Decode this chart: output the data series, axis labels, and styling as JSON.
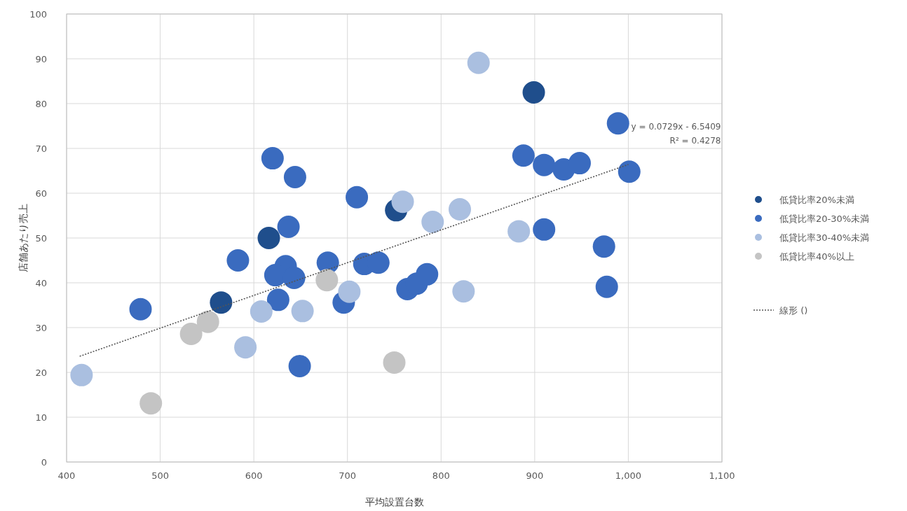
{
  "chart_data": {
    "type": "scatter",
    "xlabel": "平均設置台数",
    "ylabel": "店舗あたり売上",
    "xlim": [
      400,
      1100
    ],
    "xticks": [
      400,
      500,
      600,
      700,
      800,
      900,
      {
        "value": 1000,
        "label": "1,000"
      },
      {
        "value": 1100,
        "label": "1,100"
      }
    ],
    "ylim": [
      0,
      100
    ],
    "yticks": [
      0,
      10,
      20,
      30,
      40,
      50,
      60,
      70,
      80,
      90,
      100
    ],
    "grid": true,
    "legend": "right",
    "series": [
      {
        "name": "低貸比率20%未満",
        "marker": "circle",
        "color": "#1f4e8c",
        "x": [
          565,
          616,
          752,
          899
        ],
        "values": [
          35.6,
          50.0,
          56.2,
          82.5
        ]
      },
      {
        "name": "低貸比率20-30%未満",
        "marker": "circle",
        "color": "#3a6bbf",
        "x": [
          620,
          644,
          710,
          637,
          583,
          679,
          634,
          623,
          643,
          718,
          733,
          696,
          479,
          626,
          649,
          764,
          774,
          785,
          910,
          974,
          977,
          989,
          888,
          910,
          931,
          948,
          1001
        ],
        "values": [
          67.8,
          63.6,
          59.1,
          52.5,
          45.0,
          44.5,
          43.7,
          41.7,
          41.1,
          44.2,
          44.5,
          35.6,
          34.1,
          36.2,
          21.4,
          38.6,
          39.8,
          41.9,
          51.9,
          48.1,
          39.1,
          75.6,
          68.4,
          66.3,
          65.3,
          66.7,
          64.8
        ]
      },
      {
        "name": "低貸比率30-40%未満",
        "marker": "circle",
        "color": "#aabfe0",
        "x": [
          702,
          608,
          652,
          591,
          416,
          824,
          883,
          840,
          759,
          791,
          820
        ],
        "values": [
          38.0,
          33.6,
          33.7,
          25.6,
          19.4,
          38.1,
          51.5,
          89.1,
          58.1,
          53.6,
          56.4
        ]
      },
      {
        "name": "低貸比率40%以上",
        "marker": "circle",
        "color": "#c4c4c4",
        "x": [
          678,
          551,
          533,
          490,
          750
        ],
        "values": [
          40.6,
          31.3,
          28.6,
          13.1,
          22.2
        ]
      },
      {
        "name": "線形 ()",
        "type": "line",
        "line_style": "dotted",
        "marker": "none",
        "color": "#555555",
        "x": [
          414,
          1000
        ],
        "values": [
          23.6,
          66.4
        ]
      }
    ],
    "annotations": [
      "y = 0.0729x - 6.5409",
      "R² = 0.4278"
    ]
  }
}
